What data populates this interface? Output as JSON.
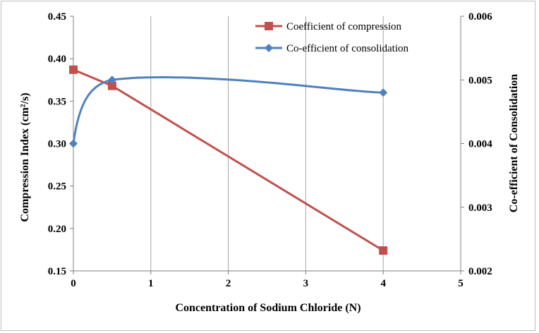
{
  "chart_data": {
    "type": "line",
    "xlabel": "Concentration  of Sodium  Chloride  (N)",
    "ylabel_left": "Compression Index  (cm²/s)",
    "ylabel_right": "Co-efficient  of Consolidation",
    "x_range": [
      0,
      5
    ],
    "x_ticks": [
      "0",
      "1",
      "2",
      "3",
      "4",
      "5"
    ],
    "y_left_range": [
      0.15,
      0.45
    ],
    "y_left_ticks": [
      "0.15",
      "0.20",
      "0.25",
      "0.30",
      "0.35",
      "0.40",
      "0.45"
    ],
    "y_right_range": [
      0.002,
      0.006
    ],
    "y_right_ticks": [
      "0.002",
      "0.003",
      "0.004",
      "0.005",
      "0.006"
    ],
    "grid": "vertical",
    "legend_position": "top-right",
    "series": [
      {
        "name": "Coefficient of compression",
        "axis": "left",
        "marker": "square",
        "color": "#c0504d",
        "smooth": false,
        "x": [
          0,
          0.5,
          4
        ],
        "y": [
          0.387,
          0.368,
          0.174
        ]
      },
      {
        "name": "Co-efficient of consolidation",
        "axis": "right",
        "marker": "diamond",
        "color": "#4f81bd",
        "smooth": true,
        "x": [
          0,
          0.5,
          4
        ],
        "y": [
          0.004,
          0.005,
          0.0048
        ]
      }
    ]
  }
}
